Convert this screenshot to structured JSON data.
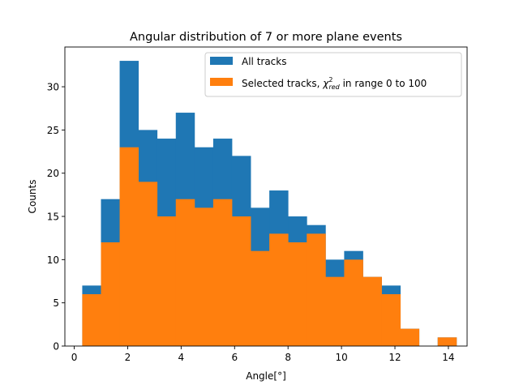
{
  "chart_data": {
    "type": "bar",
    "subtype": "histogram",
    "title": "Angular distribution of 7 or more plane events",
    "xlabel": "Angle[°]",
    "ylabel": "Counts",
    "xlim": [
      -0.35,
      14.7
    ],
    "ylim": [
      0,
      34.6
    ],
    "xticks": [
      0,
      2,
      4,
      6,
      8,
      10,
      12,
      14
    ],
    "yticks": [
      0,
      5,
      10,
      15,
      20,
      25,
      30
    ],
    "bin_edges": [
      0.3,
      1.0,
      1.7,
      2.4,
      3.1,
      3.8,
      4.5,
      5.2,
      5.9,
      6.6,
      7.3,
      8.0,
      8.7,
      9.4,
      10.1,
      10.8,
      11.5,
      12.2,
      12.9,
      13.6,
      14.3
    ],
    "series": [
      {
        "name": "All tracks",
        "color": "#1f77b4",
        "values": [
          7,
          17,
          33,
          25,
          24,
          27,
          23,
          24,
          22,
          16,
          18,
          15,
          14,
          10,
          11,
          8,
          7,
          2,
          0,
          1
        ]
      },
      {
        "name": "Selected tracks, χ²_red in range 0 to 100",
        "color": "#ff7f0e",
        "values": [
          6,
          12,
          23,
          19,
          15,
          17,
          16,
          17,
          15,
          11,
          13,
          12,
          13,
          8,
          10,
          8,
          6,
          2,
          0,
          1
        ]
      }
    ],
    "legend": {
      "placement": "top-right",
      "entries": [
        {
          "prefix": "All tracks"
        },
        {
          "prefix": "Selected tracks, ",
          "symbol": "χ",
          "sup": "2",
          "sub": "red",
          "suffix": " in range 0 to 100"
        }
      ]
    },
    "grid": false
  }
}
